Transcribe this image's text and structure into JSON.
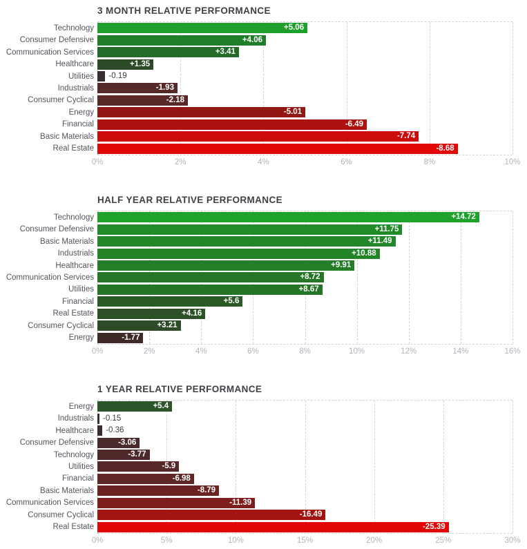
{
  "page": {
    "background": "#ffffff"
  },
  "style": {
    "title_color": "#3f3f46",
    "category_label_color": "#54545e",
    "tick_label_color": "#b2b2bc",
    "grid_color": "#d4d4d4",
    "value_label_inside_color": "#ffffff",
    "value_label_outside_color": "#3c3c44",
    "positive_bright": "#1ea22b",
    "negative_bright": "#e00705"
  },
  "chart_data": [
    {
      "type": "bar",
      "orientation": "horizontal",
      "title": "3 MONTH RELATIVE PERFORMANCE",
      "xlabel": "",
      "ylabel": "",
      "xlim": [
        0,
        10
      ],
      "grid": true,
      "note": "bar length encodes absolute value of relative performance %; green = positive, red = negative, shade scales with magnitude",
      "tick_values": [
        0,
        2,
        4,
        6,
        8,
        10
      ],
      "tick_labels": [
        "0%",
        "2%",
        "4%",
        "6%",
        "8%",
        "10%"
      ],
      "bars": [
        {
          "category": "Technology",
          "value": 5.06,
          "label": "+5.06",
          "color": "#1e9e2a"
        },
        {
          "category": "Consumer Defensive",
          "value": 4.06,
          "label": "+4.06",
          "color": "#1f7f29"
        },
        {
          "category": "Communication Services",
          "value": 3.41,
          "label": "+3.41",
          "color": "#256b28"
        },
        {
          "category": "Healthcare",
          "value": 1.35,
          "label": "+1.35",
          "color": "#2d4a28"
        },
        {
          "category": "Utilities",
          "value": -0.19,
          "label": "-0.19",
          "color": "#3a2e31"
        },
        {
          "category": "Industrials",
          "value": -1.93,
          "label": "-1.93",
          "color": "#552a29"
        },
        {
          "category": "Consumer Cyclical",
          "value": -2.18,
          "label": "-2.18",
          "color": "#592928"
        },
        {
          "category": "Energy",
          "value": -5.01,
          "label": "-5.01",
          "color": "#921714"
        },
        {
          "category": "Financial",
          "value": -6.49,
          "label": "-6.49",
          "color": "#ae1210"
        },
        {
          "category": "Basic Materials",
          "value": -7.74,
          "label": "-7.74",
          "color": "#cc0c0a"
        },
        {
          "category": "Real Estate",
          "value": -8.68,
          "label": "-8.68",
          "color": "#e00705"
        }
      ]
    },
    {
      "type": "bar",
      "orientation": "horizontal",
      "title": "HALF YEAR RELATIVE PERFORMANCE",
      "xlabel": "",
      "ylabel": "",
      "xlim": [
        0,
        16
      ],
      "grid": true,
      "note": "bar length encodes absolute value of relative performance %; green = positive, red = negative, shade scales with magnitude",
      "tick_values": [
        0,
        2,
        4,
        6,
        8,
        10,
        12,
        14,
        16
      ],
      "tick_labels": [
        "0%",
        "2%",
        "4%",
        "6%",
        "8%",
        "10%",
        "12%",
        "14%",
        "16%"
      ],
      "bars": [
        {
          "category": "Technology",
          "value": 14.72,
          "label": "+14.72",
          "color": "#1ea22b"
        },
        {
          "category": "Consumer Defensive",
          "value": 11.75,
          "label": "+11.75",
          "color": "#218a29"
        },
        {
          "category": "Basic Materials",
          "value": 11.49,
          "label": "+11.49",
          "color": "#228829"
        },
        {
          "category": "Industrials",
          "value": 10.88,
          "label": "+10.88",
          "color": "#228427"
        },
        {
          "category": "Healthcare",
          "value": 9.91,
          "label": "+9.91",
          "color": "#237e27"
        },
        {
          "category": "Communication Services",
          "value": 8.72,
          "label": "+8.72",
          "color": "#257727"
        },
        {
          "category": "Utilities",
          "value": 8.67,
          "label": "+8.67",
          "color": "#257527"
        },
        {
          "category": "Financial",
          "value": 5.6,
          "label": "+5.6",
          "color": "#2a5a26"
        },
        {
          "category": "Real Estate",
          "value": 4.16,
          "label": "+4.16",
          "color": "#2c5126"
        },
        {
          "category": "Consumer Cyclical",
          "value": 3.21,
          "label": "+3.21",
          "color": "#2e4a26"
        },
        {
          "category": "Energy",
          "value": -1.77,
          "label": "-1.77",
          "color": "#3f2a28"
        }
      ]
    },
    {
      "type": "bar",
      "orientation": "horizontal",
      "title": "1 YEAR RELATIVE PERFORMANCE",
      "xlabel": "",
      "ylabel": "",
      "xlim": [
        0,
        30
      ],
      "grid": true,
      "note": "bar length encodes absolute value of relative performance %; green = positive, red = negative, shade scales with magnitude",
      "tick_values": [
        0,
        5,
        10,
        15,
        20,
        25,
        30
      ],
      "tick_labels": [
        "0%",
        "5%",
        "10%",
        "15%",
        "20%",
        "25%",
        "30%"
      ],
      "bars": [
        {
          "category": "Energy",
          "value": 5.4,
          "label": "+5.4",
          "color": "#2c5629"
        },
        {
          "category": "Industrials",
          "value": -0.15,
          "label": "-0.15",
          "color": "#3a2e30"
        },
        {
          "category": "Healthcare",
          "value": -0.36,
          "label": "-0.36",
          "color": "#3b2d2f"
        },
        {
          "category": "Consumer Defensive",
          "value": -3.06,
          "label": "-3.06",
          "color": "#4a2a2a"
        },
        {
          "category": "Technology",
          "value": -3.77,
          "label": "-3.77",
          "color": "#4f2929"
        },
        {
          "category": "Utilities",
          "value": -5.9,
          "label": "-5.9",
          "color": "#572827"
        },
        {
          "category": "Financial",
          "value": -6.98,
          "label": "-6.98",
          "color": "#5f2726"
        },
        {
          "category": "Basic Materials",
          "value": -8.79,
          "label": "-8.79",
          "color": "#6b2322"
        },
        {
          "category": "Communication Services",
          "value": -11.39,
          "label": "-11.39",
          "color": "#7d1e1c"
        },
        {
          "category": "Consumer Cyclical",
          "value": -16.49,
          "label": "-16.49",
          "color": "#a31411"
        },
        {
          "category": "Real Estate",
          "value": -25.39,
          "label": "-25.39",
          "color": "#e20705"
        }
      ]
    }
  ]
}
